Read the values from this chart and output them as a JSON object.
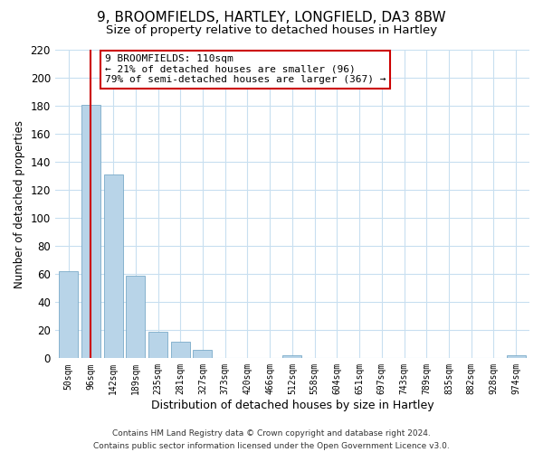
{
  "title": "9, BROOMFIELDS, HARTLEY, LONGFIELD, DA3 8BW",
  "subtitle": "Size of property relative to detached houses in Hartley",
  "xlabel": "Distribution of detached houses by size in Hartley",
  "ylabel": "Number of detached properties",
  "categories": [
    "50sqm",
    "96sqm",
    "142sqm",
    "189sqm",
    "235sqm",
    "281sqm",
    "327sqm",
    "373sqm",
    "420sqm",
    "466sqm",
    "512sqm",
    "558sqm",
    "604sqm",
    "651sqm",
    "697sqm",
    "743sqm",
    "789sqm",
    "835sqm",
    "882sqm",
    "928sqm",
    "974sqm"
  ],
  "values": [
    62,
    181,
    131,
    59,
    19,
    12,
    6,
    0,
    0,
    0,
    2,
    0,
    0,
    0,
    0,
    0,
    0,
    0,
    0,
    0,
    2
  ],
  "bar_color": "#b8d4e8",
  "bar_edge_color": "#7aaac8",
  "vline_color": "#cc0000",
  "annotation_title": "9 BROOMFIELDS: 110sqm",
  "annotation_line1": "← 21% of detached houses are smaller (96)",
  "annotation_line2": "79% of semi-detached houses are larger (367) →",
  "annotation_box_color": "#ffffff",
  "annotation_box_edge": "#cc0000",
  "ylim": [
    0,
    220
  ],
  "yticks": [
    0,
    20,
    40,
    60,
    80,
    100,
    120,
    140,
    160,
    180,
    200,
    220
  ],
  "footer_line1": "Contains HM Land Registry data © Crown copyright and database right 2024.",
  "footer_line2": "Contains public sector information licensed under the Open Government Licence v3.0.",
  "background_color": "#ffffff",
  "grid_color": "#c8dff0",
  "title_fontsize": 11,
  "subtitle_fontsize": 9.5,
  "ylabel_fontsize": 8.5,
  "xlabel_fontsize": 9
}
